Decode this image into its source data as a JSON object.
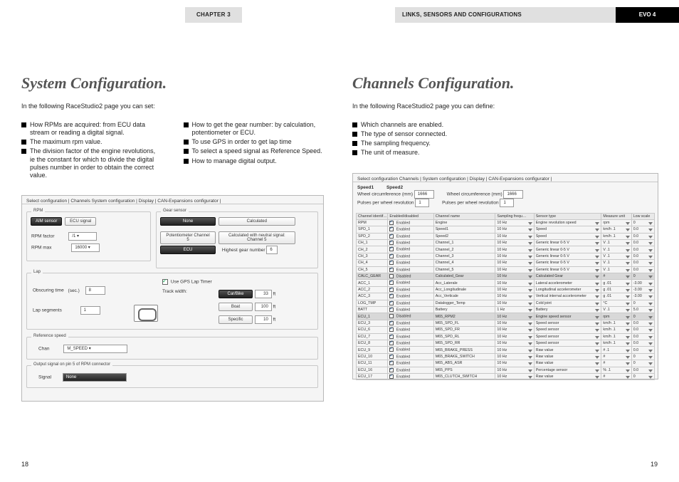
{
  "header": {
    "chapter": "CHAPTER 3",
    "section": "LINKS, SENSORS AND CONFIGURATIONS",
    "evo": "EVO 4"
  },
  "page_left_num": "18",
  "page_right_num": "19",
  "left": {
    "title": "System Configuration.",
    "intro": "In the following RaceStudio2 page you can set:",
    "bullets_col1": [
      "How RPMs are acquired: from ECU data stream or reading a digital signal.",
      "The maximum rpm value.",
      "The division factor of the engine revolutions, ie the constant for which to divide the digital pulses number in order to obtain the correct value."
    ],
    "bullets_col2": [
      "How to get the gear number: by calculation, potentiometer or ECU.",
      "To use GPS in order to get lap time",
      "To select a speed signal as Reference Speed.",
      "How to manage digital output."
    ]
  },
  "right": {
    "title": "Channels Configuration.",
    "intro": "In the following RaceStudio2 page you can define:",
    "bullets": [
      "Which channels are enabled.",
      "The type of sensor connected.",
      "The sampling frequency.",
      "The unit of measure."
    ]
  },
  "sys_cfg": {
    "tabs": "Select configuration | Channels  System configuration | Display | CAN-Expansions configurator |",
    "rpm": {
      "aim": "AIM sensor",
      "ecu": "ECU signal",
      "factor_lbl": "RPM factor",
      "factor_val": "/1",
      "max_lbl": "RPM max",
      "max_val": "16000"
    },
    "gear": {
      "none": "None",
      "calculated": "Calculated",
      "pot": "Potentiometer Channel 5",
      "calc_neutral": "Calculated with neutral signal: Channel 5",
      "ecu": "ECU",
      "highest_lbl": "Highest gear number",
      "highest_val": "6"
    },
    "lap": {
      "gps_lbl": "Use GPS Lap Timer",
      "track_lbl": "Track width:",
      "obscuring_lbl": "Obscuring time",
      "obscuring_unit": "(sec.)",
      "obscuring_val": "8",
      "segments_lbl": "Lap segments",
      "segments_val": "1",
      "carbike": "Car/Bike",
      "carbike_val": "33",
      "boat": "Boat",
      "boat_val": "100",
      "specific": "Specific",
      "specific_val": "10",
      "ft": "ft"
    },
    "refspeed": {
      "lbl": "Chan",
      "val": "M_SPEED"
    },
    "outsig": {
      "lbl": "Signal",
      "val": "None"
    },
    "box_rpm": "RPM",
    "box_gear": "Gear sensor",
    "box_lap": "Lap",
    "box_ref": "Reference speed",
    "box_out": "Output signal on pin 5 of RPM connector"
  },
  "ch_cfg": {
    "tabs": "Select configuration  Channels | System configuration | Display | CAN-Expansions configurator |",
    "speed_lbl": "Speed1",
    "wc_lbl": "Wheel circumference   (mm)",
    "wc_val": "1666",
    "ppr_lbl": "Pulses per wheel revolution",
    "ppr_val": "1",
    "speed2_lbl": "Speed2",
    "wc2_lbl": "Wheel circumference   (mm)",
    "wc2_val": "1666",
    "ppr2_lbl": "Pulses per wheel revolution",
    "ppr2_val": "1",
    "columns": [
      "Channel identif…",
      "Enabled/disabled",
      "Channel name",
      "Sampling frequ…",
      "Sensor type",
      "Measure unit",
      "Low scale"
    ],
    "rows": [
      [
        "RPM",
        true,
        "Enabled",
        "Engine",
        "10 Hz",
        "Engine revolution speed",
        "rpm",
        "0"
      ],
      [
        "SPD_1",
        true,
        "Enabled",
        "Speed1",
        "10 Hz",
        "Speed",
        "km/h  .1",
        "0.0"
      ],
      [
        "SPD_2",
        true,
        "Enabled",
        "Speed2",
        "10 Hz",
        "Speed",
        "km/h  .1",
        "0.0"
      ],
      [
        "CH_1",
        true,
        "Enabled",
        "Channel_1",
        "10 Hz",
        "Generic linear 0-5 V",
        "V  .1",
        "0.0"
      ],
      [
        "CH_2",
        true,
        "Enabled",
        "Channel_2",
        "10 Hz",
        "Generic linear 0-5 V",
        "V  .1",
        "0.0"
      ],
      [
        "CH_3",
        true,
        "Enabled",
        "Channel_3",
        "10 Hz",
        "Generic linear 0-5 V",
        "V  .1",
        "0.0"
      ],
      [
        "CH_4",
        true,
        "Enabled",
        "Channel_4",
        "10 Hz",
        "Generic linear 0-5 V",
        "V  .1",
        "0.0"
      ],
      [
        "CH_5",
        true,
        "Enabled",
        "Channel_5",
        "10 Hz",
        "Generic linear 0-5 V",
        "V  .1",
        "0.0"
      ],
      [
        "CALC_GEAR",
        false,
        "Disabled",
        "Calculated_Gear",
        "10 Hz",
        "Calculated Gear",
        "#",
        "0"
      ],
      [
        "ACC_1",
        true,
        "Enabled",
        "Acc_Laterale",
        "10 Hz",
        "Lateral accelerometer",
        "g  .01",
        "-3.00"
      ],
      [
        "ACC_2",
        true,
        "Enabled",
        "Acc_Longitudinale",
        "10 Hz",
        "Longitudinal accelerometer",
        "g  .01",
        "-3.00"
      ],
      [
        "ACC_3",
        true,
        "Enabled",
        "Acc_Verticale",
        "10 Hz",
        "Vertical internal accelerometer",
        "g  .01",
        "-3.00"
      ],
      [
        "LOG_TMP",
        true,
        "Enabled",
        "Datalogger_Temp",
        "10 Hz",
        "Cold joint",
        "°C",
        "0"
      ],
      [
        "BATT",
        true,
        "Enabled",
        "Battery",
        "1 Hz",
        "Battery",
        "V  .1",
        "5.0"
      ],
      [
        "ECU_1",
        false,
        "Disabled",
        "M65_RPM2",
        "10 Hz",
        "Engine speed sensor",
        "rpm",
        "0"
      ],
      [
        "ECU_3",
        true,
        "Enabled",
        "M65_SPD_FL",
        "10 Hz",
        "Speed sensor",
        "km/h  .1",
        "0.0"
      ],
      [
        "ECU_6",
        true,
        "Enabled",
        "M65_SPD_FR",
        "10 Hz",
        "Speed sensor",
        "km/h  .1",
        "0.0"
      ],
      [
        "ECU_7",
        true,
        "Enabled",
        "M65_SPD_RL",
        "10 Hz",
        "Speed sensor",
        "km/h  .1",
        "0.0"
      ],
      [
        "ECU_8",
        true,
        "Enabled",
        "M65_SPD_RR",
        "10 Hz",
        "Speed sensor",
        "km/h  .1",
        "0.0"
      ],
      [
        "ECU_9",
        true,
        "Enabled",
        "M65_BRAKE_PRESS",
        "10 Hz",
        "Raw value",
        "#  .1",
        "0.0"
      ],
      [
        "ECU_10",
        true,
        "Enabled",
        "M65_BRAKE_SWITCH",
        "10 Hz",
        "Raw value",
        "#",
        "0"
      ],
      [
        "ECU_11",
        true,
        "Enabled",
        "M65_ABS_ASR",
        "10 Hz",
        "Raw value",
        "#",
        "0"
      ],
      [
        "ECU_16",
        true,
        "Enabled",
        "M65_PPS",
        "10 Hz",
        "Percentage sensor",
        "%  .1",
        "0.0"
      ],
      [
        "ECU_17",
        true,
        "Enabled",
        "M65_CLUTCH_SWITCH",
        "10 Hz",
        "Raw value",
        "#",
        "0"
      ]
    ]
  }
}
